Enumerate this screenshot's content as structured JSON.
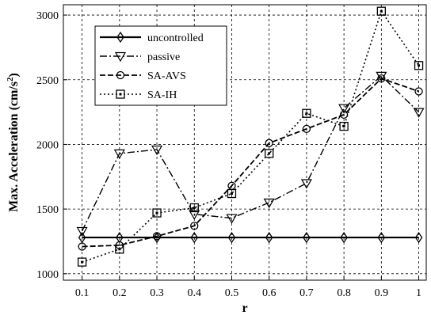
{
  "chart_data": {
    "type": "line",
    "title": "",
    "xlabel": "r",
    "ylabel_prefix": "Max. Acceleration (cm/s",
    "ylabel_sup": "2",
    "ylabel_suffix": ")",
    "x": [
      0.1,
      0.2,
      0.3,
      0.4,
      0.5,
      0.6,
      0.7,
      0.8,
      0.9,
      1.0
    ],
    "xticks": [
      "0.1",
      "0.2",
      "0.3",
      "0.4",
      "0.5",
      "0.6",
      "0.7",
      "0.8",
      "0.9",
      "1"
    ],
    "yticks": [
      "1000",
      "1500",
      "2000",
      "2500",
      "3000"
    ],
    "xlim": [
      0.05,
      1.02
    ],
    "ylim": [
      950,
      3080
    ],
    "grid": true,
    "legend_position": "top-left",
    "series": [
      {
        "name": "uncontrolled",
        "dash": "",
        "marker": "diamond",
        "stroke_width": 2.2,
        "values": [
          1280,
          1280,
          1280,
          1280,
          1280,
          1280,
          1280,
          1280,
          1280,
          1280
        ]
      },
      {
        "name": "passive",
        "dash": "9,3,2,3",
        "marker": "triangle-down",
        "stroke_width": 1.4,
        "values": [
          1330,
          1930,
          1960,
          1460,
          1430,
          1550,
          1700,
          2280,
          2530,
          2250
        ]
      },
      {
        "name": "SA-AVS",
        "dash": "7,3",
        "marker": "circle",
        "stroke_width": 1.8,
        "values": [
          1210,
          1220,
          1290,
          1370,
          1680,
          2010,
          2120,
          2230,
          2510,
          2410
        ]
      },
      {
        "name": "SA-IH",
        "dash": "2,3",
        "marker": "square",
        "stroke_width": 1.6,
        "values": [
          1090,
          1190,
          1470,
          1510,
          1620,
          1930,
          2240,
          2140,
          3030,
          2610
        ]
      }
    ]
  }
}
